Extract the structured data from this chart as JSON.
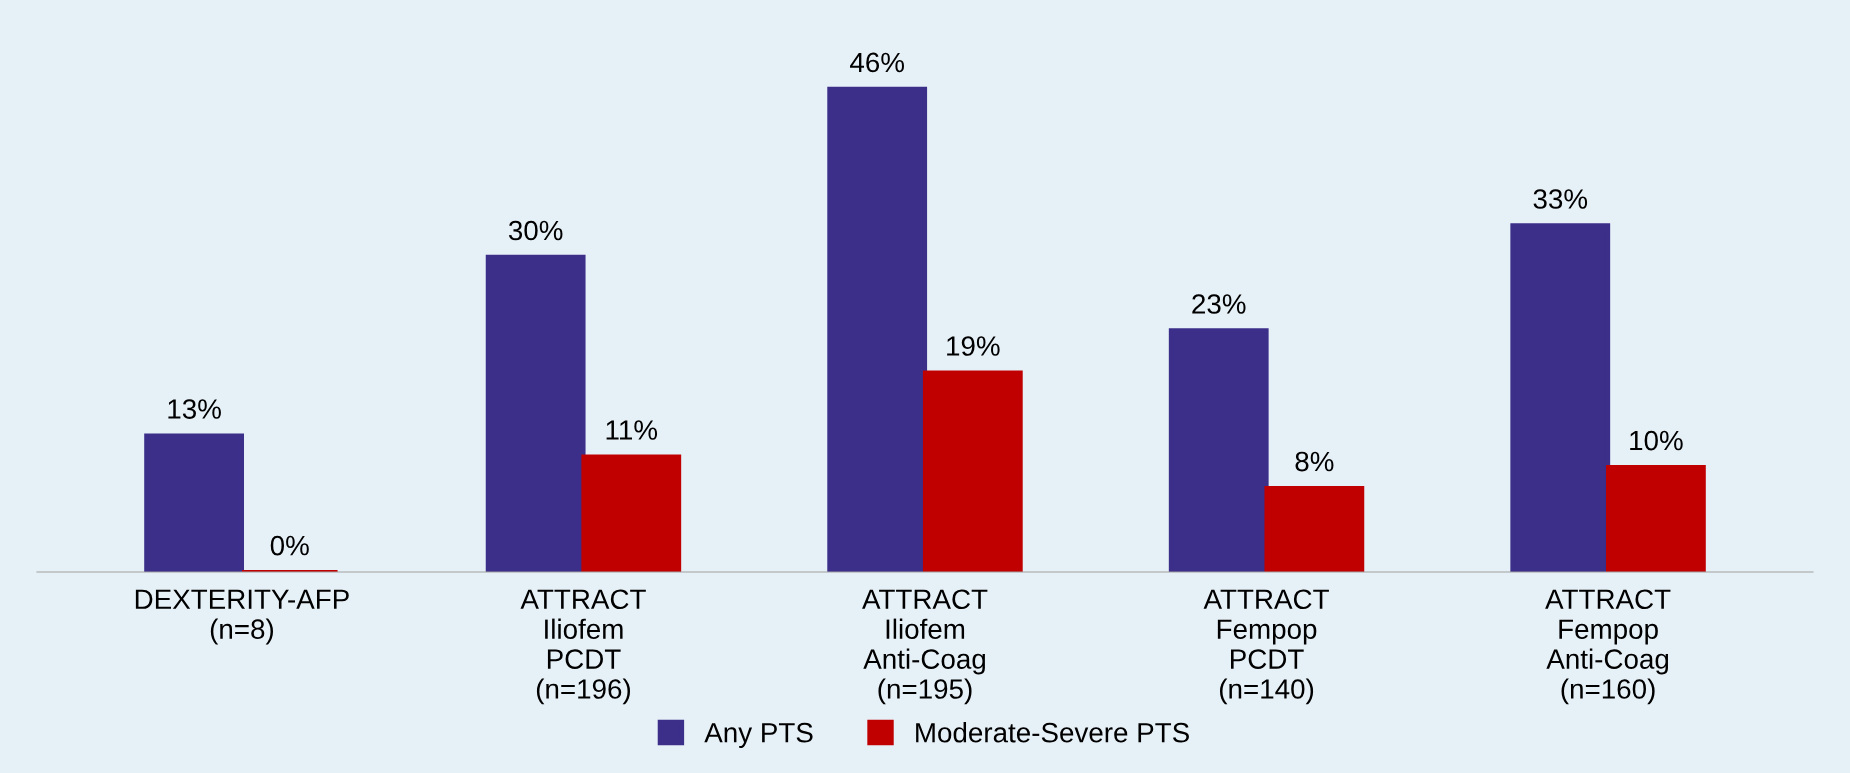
{
  "chart_data": {
    "type": "bar",
    "categories": [
      "DEXTERITY-AFP\n(n=8)",
      "ATTRACT\nIliofem\nPCDT\n(n=196)",
      "ATTRACT\nIliofem\nAnti-Coag\n(n=195)",
      "ATTRACT\nFempop\nPCDT\n(n=140)",
      "ATTRACT\nFempop\nAnti-Coag\n(n=160)"
    ],
    "series": [
      {
        "name": "Any PTS",
        "color": "#3c2f8a",
        "values": [
          13,
          30,
          46,
          23,
          33
        ],
        "value_labels": [
          "13%",
          "30%",
          "46%",
          "23%",
          "33%"
        ]
      },
      {
        "name": "Moderate-Severe PTS",
        "color": "#c00000",
        "values": [
          0,
          11,
          19,
          8,
          10
        ],
        "value_labels": [
          "0%",
          "11%",
          "19%",
          "8%",
          "10%"
        ]
      }
    ],
    "legend": "bottom",
    "tick_labels": "x"
  }
}
